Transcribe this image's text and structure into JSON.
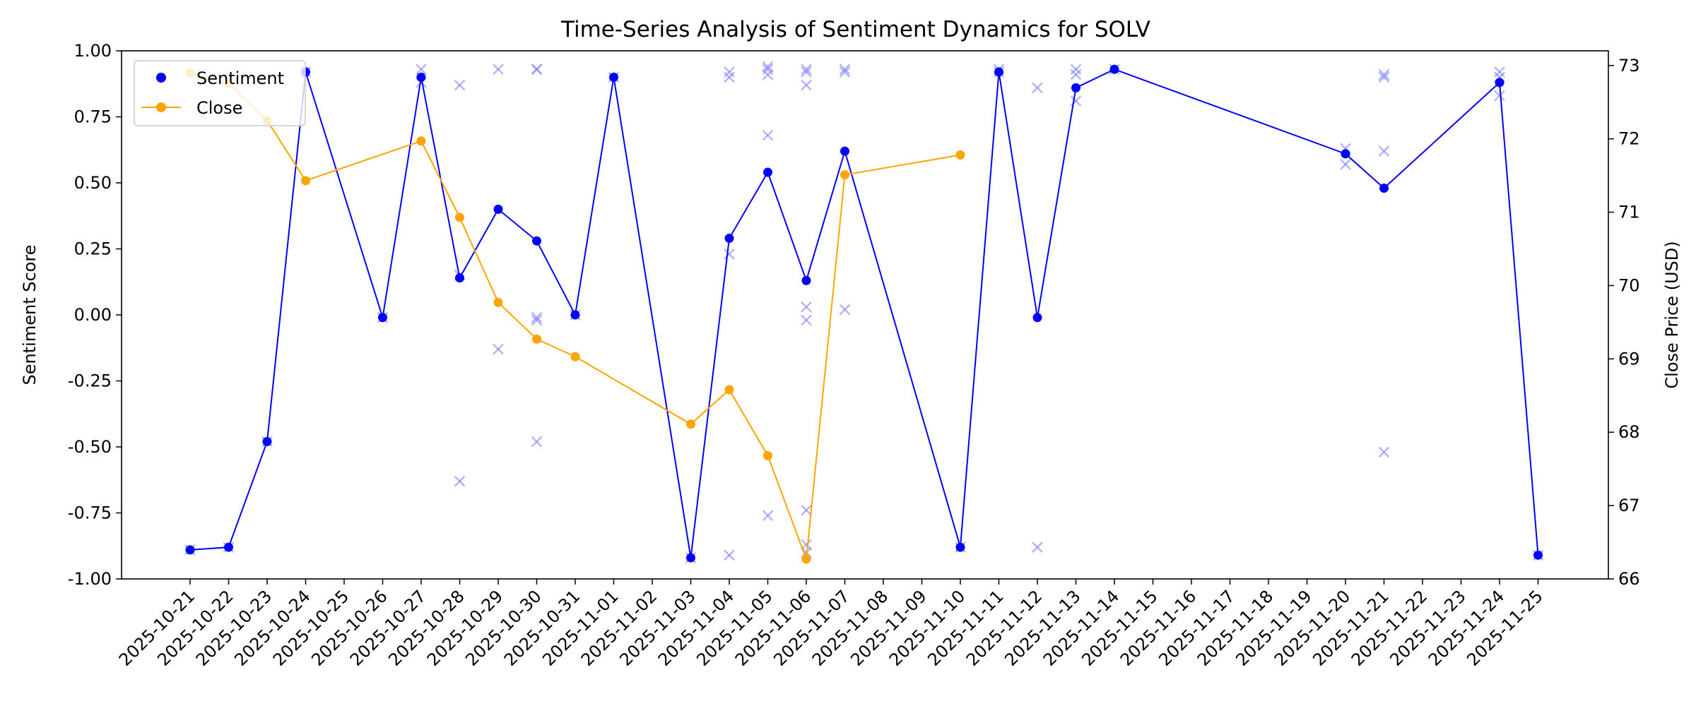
{
  "chart_data": {
    "type": "line",
    "title": "Time-Series Analysis of Sentiment Dynamics for SOLV",
    "xlabel": "",
    "ylabel_left": "Sentiment Score",
    "ylabel_right": "Close Price (USD)",
    "ylim_left": [
      -1.0,
      1.0
    ],
    "ylim_right": [
      66.0,
      73.2
    ],
    "y_ticks_left": [
      "1.00",
      "0.75",
      "0.50",
      "0.25",
      "0.00",
      "-0.25",
      "-0.50",
      "-0.75",
      "-1.00"
    ],
    "y_ticks_right": [
      "73",
      "72",
      "71",
      "70",
      "69",
      "68",
      "67",
      "66"
    ],
    "x_ticks": [
      "2025-10-21",
      "2025-10-22",
      "2025-10-23",
      "2025-10-24",
      "2025-10-25",
      "2025-10-26",
      "2025-10-27",
      "2025-10-28",
      "2025-10-29",
      "2025-10-30",
      "2025-10-31",
      "2025-11-01",
      "2025-11-02",
      "2025-11-03",
      "2025-11-04",
      "2025-11-05",
      "2025-11-06",
      "2025-11-07",
      "2025-11-08",
      "2025-11-09",
      "2025-11-10",
      "2025-11-11",
      "2025-11-12",
      "2025-11-13",
      "2025-11-14",
      "2025-11-15",
      "2025-11-16",
      "2025-11-17",
      "2025-11-18",
      "2025-11-19",
      "2025-11-20",
      "2025-11-21",
      "2025-11-22",
      "2025-11-23",
      "2025-11-24",
      "2025-11-25"
    ],
    "grid": false,
    "legend_position": "top-left",
    "legend": [
      {
        "label": "Sentiment",
        "marker": "dot",
        "color": "#0000ff"
      },
      {
        "label": "Close",
        "marker": "line-dot",
        "color": "#ffa500"
      }
    ],
    "series": [
      {
        "name": "Sentiment",
        "axis": "left",
        "color": "#0000ff",
        "points": [
          [
            "2025-10-21",
            -0.89
          ],
          [
            "2025-10-22",
            -0.88
          ],
          [
            "2025-10-23",
            -0.48
          ],
          [
            "2025-10-24",
            0.92
          ],
          [
            "2025-10-26",
            -0.01
          ],
          [
            "2025-10-27",
            0.9
          ],
          [
            "2025-10-28",
            0.14
          ],
          [
            "2025-10-29",
            0.4
          ],
          [
            "2025-10-30",
            0.28
          ],
          [
            "2025-10-31",
            0.0
          ],
          [
            "2025-11-01",
            0.9
          ],
          [
            "2025-11-03",
            -0.92
          ],
          [
            "2025-11-04",
            0.29
          ],
          [
            "2025-11-05",
            0.54
          ],
          [
            "2025-11-06",
            0.13
          ],
          [
            "2025-11-07",
            0.62
          ],
          [
            "2025-11-10",
            -0.88
          ],
          [
            "2025-11-11",
            0.92
          ],
          [
            "2025-11-12",
            -0.01
          ],
          [
            "2025-11-13",
            0.86
          ],
          [
            "2025-11-14",
            0.93
          ],
          [
            "2025-11-20",
            0.61
          ],
          [
            "2025-11-21",
            0.48
          ],
          [
            "2025-11-24",
            0.88
          ],
          [
            "2025-11-25",
            -0.91
          ]
        ]
      },
      {
        "name": "Close",
        "axis": "right",
        "color": "#ffa500",
        "points": [
          [
            "2025-10-21",
            72.9
          ],
          [
            "2025-10-22",
            72.75
          ],
          [
            "2025-10-23",
            72.25
          ],
          [
            "2025-10-24",
            71.43
          ],
          [
            "2025-10-27",
            71.97
          ],
          [
            "2025-10-28",
            70.93
          ],
          [
            "2025-10-29",
            69.77
          ],
          [
            "2025-10-30",
            69.27
          ],
          [
            "2025-10-31",
            69.03
          ],
          [
            "2025-11-03",
            68.11
          ],
          [
            "2025-11-04",
            68.58
          ],
          [
            "2025-11-05",
            67.68
          ],
          [
            "2025-11-06",
            66.27
          ],
          [
            "2025-11-07",
            71.51
          ],
          [
            "2025-11-10",
            71.78
          ]
        ]
      }
    ],
    "scatter_individual": {
      "marker": "x",
      "color": "#8080ff",
      "points": [
        [
          "2025-10-21",
          -0.89
        ],
        [
          "2025-10-22",
          -0.88
        ],
        [
          "2025-10-23",
          -0.48
        ],
        [
          "2025-10-24",
          0.92
        ],
        [
          "2025-10-26",
          -0.01
        ],
        [
          "2025-10-27",
          0.93
        ],
        [
          "2025-10-27",
          0.88
        ],
        [
          "2025-10-28",
          0.87
        ],
        [
          "2025-10-28",
          0.15
        ],
        [
          "2025-10-28",
          -0.63
        ],
        [
          "2025-10-29",
          0.93
        ],
        [
          "2025-10-29",
          -0.13
        ],
        [
          "2025-10-30",
          0.93
        ],
        [
          "2025-10-30",
          0.93
        ],
        [
          "2025-10-30",
          -0.01
        ],
        [
          "2025-10-30",
          -0.02
        ],
        [
          "2025-10-30",
          -0.48
        ],
        [
          "2025-10-31",
          0.0
        ],
        [
          "2025-11-01",
          0.9
        ],
        [
          "2025-11-03",
          -0.92
        ],
        [
          "2025-11-04",
          0.92
        ],
        [
          "2025-11-04",
          0.9
        ],
        [
          "2025-11-04",
          0.23
        ],
        [
          "2025-11-04",
          -0.91
        ],
        [
          "2025-11-05",
          0.94
        ],
        [
          "2025-11-05",
          0.93
        ],
        [
          "2025-11-05",
          0.91
        ],
        [
          "2025-11-05",
          0.68
        ],
        [
          "2025-11-05",
          -0.76
        ],
        [
          "2025-11-06",
          0.93
        ],
        [
          "2025-11-06",
          0.92
        ],
        [
          "2025-11-06",
          0.87
        ],
        [
          "2025-11-06",
          0.03
        ],
        [
          "2025-11-06",
          -0.02
        ],
        [
          "2025-11-06",
          -0.74
        ],
        [
          "2025-11-06",
          -0.87
        ],
        [
          "2025-11-06",
          -0.9
        ],
        [
          "2025-11-07",
          0.93
        ],
        [
          "2025-11-07",
          0.92
        ],
        [
          "2025-11-07",
          0.02
        ],
        [
          "2025-11-10",
          -0.88
        ],
        [
          "2025-11-11",
          0.93
        ],
        [
          "2025-11-11",
          0.92
        ],
        [
          "2025-11-12",
          0.86
        ],
        [
          "2025-11-12",
          -0.88
        ],
        [
          "2025-11-13",
          0.93
        ],
        [
          "2025-11-13",
          0.91
        ],
        [
          "2025-11-13",
          0.81
        ],
        [
          "2025-11-14",
          0.93
        ],
        [
          "2025-11-20",
          0.63
        ],
        [
          "2025-11-20",
          0.57
        ],
        [
          "2025-11-21",
          0.91
        ],
        [
          "2025-11-21",
          0.9
        ],
        [
          "2025-11-21",
          0.62
        ],
        [
          "2025-11-21",
          -0.52
        ],
        [
          "2025-11-24",
          0.92
        ],
        [
          "2025-11-24",
          0.9
        ],
        [
          "2025-11-24",
          0.83
        ],
        [
          "2025-11-25",
          -0.91
        ]
      ]
    }
  }
}
